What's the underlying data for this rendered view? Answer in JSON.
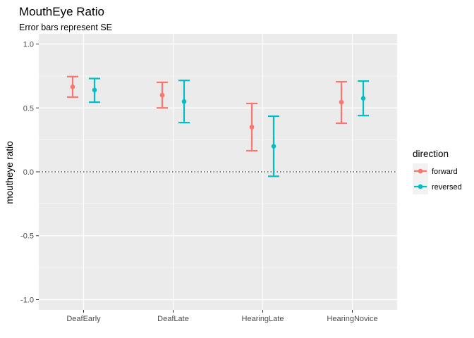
{
  "chart_data": {
    "type": "errorbar",
    "title": "MouthEye Ratio",
    "subtitle": "Error bars represent SE",
    "xlabel": "",
    "ylabel": "moutheye ratio",
    "categories": [
      "DeafEarly",
      "DeafLate",
      "HearingLate",
      "HearingNovice"
    ],
    "ylim": [
      -1.08,
      1.08
    ],
    "yticks": [
      -1.0,
      -0.5,
      0.0,
      0.5,
      1.0
    ],
    "ytick_labels": [
      "-1.0",
      "-0.5",
      "0.0",
      "0.5",
      "1.0"
    ],
    "reference_line": {
      "y": 0.0,
      "style": "dotted"
    },
    "grid": true,
    "legend": {
      "title": "direction",
      "position": "right"
    },
    "series": [
      {
        "name": "forward",
        "color": "#F8766D",
        "values": [
          0.665,
          0.6,
          0.35,
          0.545
        ],
        "lower": [
          0.585,
          0.5,
          0.165,
          0.38
        ],
        "upper": [
          0.745,
          0.7,
          0.535,
          0.705
        ]
      },
      {
        "name": "reversed",
        "color": "#00BFC4",
        "values": [
          0.64,
          0.55,
          0.2,
          0.575
        ],
        "lower": [
          0.545,
          0.385,
          -0.035,
          0.44
        ],
        "upper": [
          0.73,
          0.715,
          0.435,
          0.71
        ]
      }
    ]
  }
}
